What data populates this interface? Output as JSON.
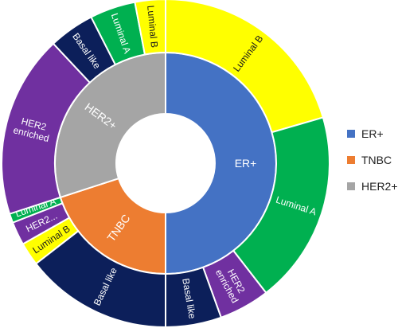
{
  "chart_data": {
    "type": "sunburst",
    "title": "",
    "colors": {
      "ER+": "#4472C4",
      "TNBC": "#ED7D31",
      "HER2+": "#A5A5A5",
      "Luminal A": "#00B050",
      "Luminal B": "#FFFF00",
      "Basal like": "#0C1F5A",
      "HER2 enriched": "#7030A0"
    },
    "inner": [
      {
        "label": "ER+",
        "value": 50.0
      },
      {
        "label": "TNBC",
        "value": 20.0
      },
      {
        "label": "HER2+",
        "value": 30.0
      }
    ],
    "outer": [
      {
        "parent": "ER+",
        "label": "Luminal B",
        "value": 20.5
      },
      {
        "parent": "ER+",
        "label": "Luminal A",
        "value": 19.0
      },
      {
        "parent": "ER+",
        "label": "HER2 enriched",
        "value": 5.0
      },
      {
        "parent": "ER+",
        "label": "Basal like",
        "value": 5.5
      },
      {
        "parent": "HER2+",
        "label": "HER2 enriched",
        "value": 18.0
      },
      {
        "parent": "HER2+",
        "label": "Basal like",
        "value": 4.5
      },
      {
        "parent": "HER2+",
        "label": "Luminal A",
        "value": 4.5
      },
      {
        "parent": "HER2+",
        "label": "Luminal B",
        "value": 3.0
      },
      {
        "parent": "TNBC",
        "label": "Basal like",
        "value": 14.5
      },
      {
        "parent": "TNBC",
        "label": "Luminal B",
        "value": 2.3
      },
      {
        "parent": "TNBC",
        "label": "HER2...",
        "value": 2.3
      },
      {
        "parent": "TNBC",
        "label": "Luminal A",
        "value": 1.4
      }
    ],
    "legend": {
      "position": "right",
      "items": [
        {
          "label": "ER+",
          "color": "#4472C4"
        },
        {
          "label": "TNBC",
          "color": "#ED7D31"
        },
        {
          "label": "HER2+",
          "color": "#A5A5A5"
        }
      ]
    }
  }
}
